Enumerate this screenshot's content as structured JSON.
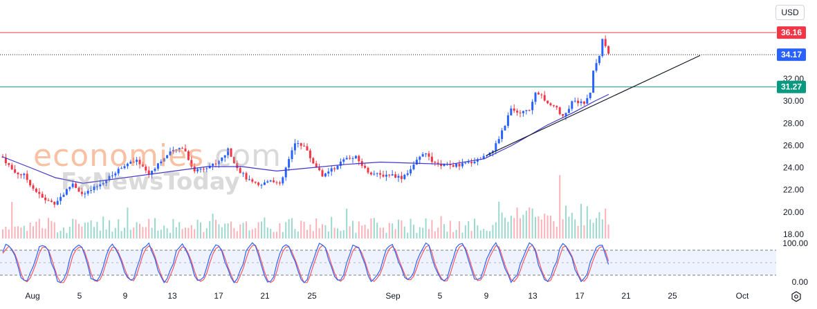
{
  "currency_label": "USD",
  "watermark": {
    "brand": "economies",
    "domain": ".com",
    "sub": "FxNewsToday"
  },
  "price_tags": {
    "resistance": {
      "value": "36.16",
      "color": "#f23645"
    },
    "last": {
      "value": "34.17",
      "color": "#2962ff"
    },
    "support": {
      "value": "31.27",
      "color": "#089981"
    }
  },
  "colors": {
    "up": "#2962ff",
    "down": "#f23645",
    "ma": "#3f36c9",
    "stoch_k": "#2962ff",
    "stoch_d": "#f7525f"
  },
  "chart_data": {
    "type": "candlestick",
    "price_axis": {
      "ticks": [
        "32.00",
        "30.00",
        "28.00",
        "26.00",
        "24.00",
        "22.00",
        "20.00",
        "18.00"
      ],
      "range": [
        17.4,
        38.0
      ]
    },
    "x_axis_labels": [
      "Aug",
      "5",
      "9",
      "13",
      "17",
      "21",
      "25",
      "Sep",
      "5",
      "9",
      "13",
      "17",
      "21",
      "25",
      "Oct"
    ],
    "horizontal_levels": [
      36.16,
      31.27
    ],
    "last_price": 34.17,
    "trendline": {
      "from_x": 703,
      "from_price": 25.1,
      "to_x": 1012,
      "to_price": 34.1
    },
    "price_path": [
      [
        3,
        25.0
      ],
      [
        20,
        23.6
      ],
      [
        35,
        23.3
      ],
      [
        50,
        22.0
      ],
      [
        62,
        21.2
      ],
      [
        78,
        20.8
      ],
      [
        90,
        21.5
      ],
      [
        105,
        22.6
      ],
      [
        120,
        21.5
      ],
      [
        140,
        22.3
      ],
      [
        160,
        23.2
      ],
      [
        180,
        24.3
      ],
      [
        200,
        24.6
      ],
      [
        215,
        23.4
      ],
      [
        230,
        24.5
      ],
      [
        248,
        25.4
      ],
      [
        265,
        25.9
      ],
      [
        280,
        23.7
      ],
      [
        298,
        24.1
      ],
      [
        315,
        24.4
      ],
      [
        330,
        25.6
      ],
      [
        345,
        23.8
      ],
      [
        360,
        22.8
      ],
      [
        375,
        22.3
      ],
      [
        392,
        23.0
      ],
      [
        405,
        22.4
      ],
      [
        415,
        24.3
      ],
      [
        428,
        26.4
      ],
      [
        440,
        25.9
      ],
      [
        452,
        24.5
      ],
      [
        468,
        23.2
      ],
      [
        485,
        24.1
      ],
      [
        500,
        24.8
      ],
      [
        515,
        24.9
      ],
      [
        530,
        23.7
      ],
      [
        548,
        23.3
      ],
      [
        565,
        23.4
      ],
      [
        580,
        23.1
      ],
      [
        596,
        24.0
      ],
      [
        612,
        25.4
      ],
      [
        628,
        24.3
      ],
      [
        645,
        24.2
      ],
      [
        665,
        24.2
      ],
      [
        685,
        24.6
      ],
      [
        700,
        25.0
      ],
      [
        715,
        25.8
      ],
      [
        730,
        27.9
      ],
      [
        738,
        29.2
      ],
      [
        752,
        28.8
      ],
      [
        766,
        29.3
      ],
      [
        776,
        30.9
      ],
      [
        790,
        29.9
      ],
      [
        803,
        29.4
      ],
      [
        815,
        28.5
      ],
      [
        828,
        30.1
      ],
      [
        845,
        29.8
      ],
      [
        853,
        30.5
      ],
      [
        858,
        33.0
      ],
      [
        866,
        34.0
      ],
      [
        870,
        35.6
      ],
      [
        875,
        34.8
      ],
      [
        880,
        34.17
      ]
    ],
    "ma_path": [
      [
        3,
        25.0
      ],
      [
        40,
        24.1
      ],
      [
        80,
        23.1
      ],
      [
        120,
        22.6
      ],
      [
        180,
        23.1
      ],
      [
        240,
        23.6
      ],
      [
        300,
        24.1
      ],
      [
        350,
        24.1
      ],
      [
        400,
        23.7
      ],
      [
        450,
        24.0
      ],
      [
        500,
        24.3
      ],
      [
        550,
        24.5
      ],
      [
        600,
        24.4
      ],
      [
        650,
        24.3
      ],
      [
        700,
        24.8
      ],
      [
        740,
        26.0
      ],
      [
        790,
        27.8
      ],
      [
        830,
        29.0
      ],
      [
        860,
        30.0
      ],
      [
        880,
        30.6
      ]
    ],
    "stochastic": {
      "ticks": [
        "100.00",
        "0.00"
      ],
      "range": [
        0,
        100
      ],
      "bands": [
        80,
        20
      ]
    }
  }
}
